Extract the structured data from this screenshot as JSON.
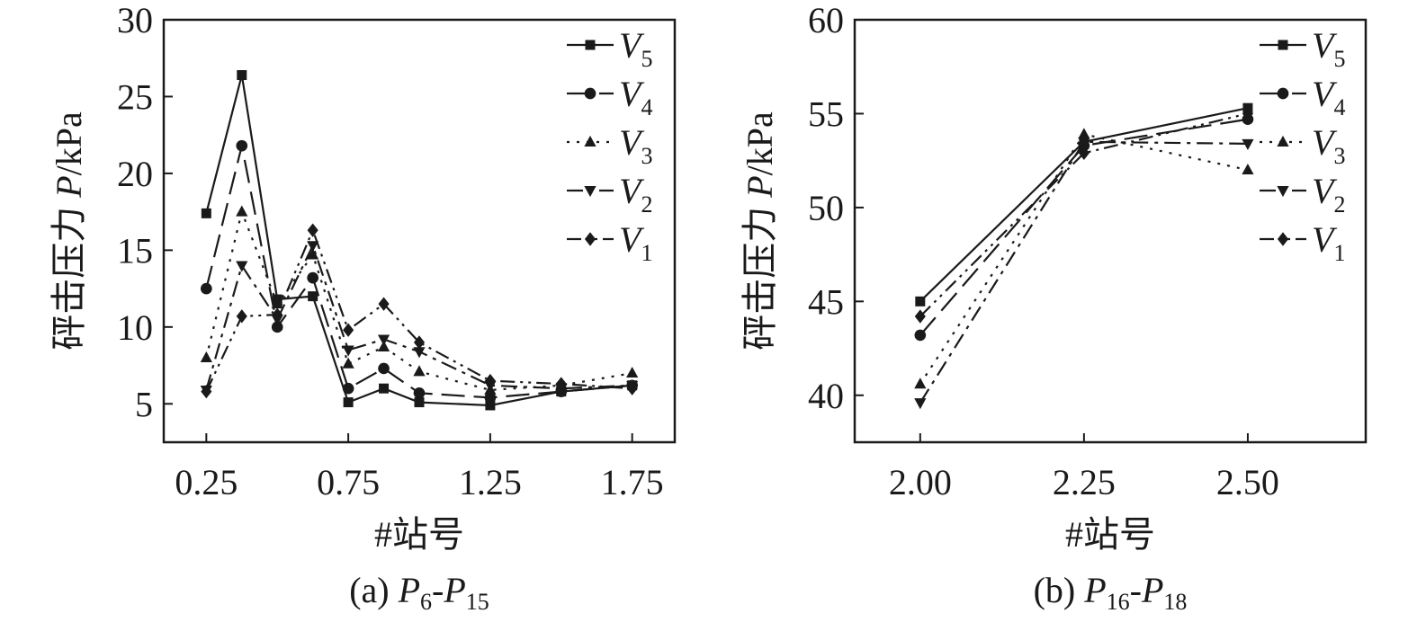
{
  "chart_data": [
    {
      "type": "line",
      "x": [
        0.25,
        0.375,
        0.5,
        0.625,
        0.75,
        0.875,
        1.0,
        1.25,
        1.5,
        1.75
      ],
      "x_ticks": [
        "0.25",
        "0.75",
        "1.25",
        "1.75"
      ],
      "x_tick_values": [
        0.25,
        0.75,
        1.25,
        1.75
      ],
      "xlim": [
        0.1,
        1.9
      ],
      "y_ticks": [
        "5",
        "10",
        "15",
        "20",
        "25",
        "30"
      ],
      "y_tick_values": [
        5,
        10,
        15,
        20,
        25,
        30
      ],
      "ylim": [
        2.5,
        30
      ],
      "xlabel": "#站号",
      "ylabel_prefix": "砰击压力 ",
      "ylabel_var": "P",
      "ylabel_unit": "/kPa",
      "caption_prefix": "(a) ",
      "caption_a": "P",
      "caption_a_sub": "6",
      "caption_sep": "-",
      "caption_b": "P",
      "caption_b_sub": "15",
      "legend_position": "top-right",
      "series": [
        {
          "name": "V",
          "sub": "5",
          "marker": "square",
          "dash": "solid",
          "values": [
            17.4,
            26.4,
            11.8,
            12.0,
            5.1,
            6.0,
            5.1,
            4.9,
            5.8,
            6.2
          ]
        },
        {
          "name": "V",
          "sub": "4",
          "marker": "circle",
          "dash": "longdash",
          "values": [
            12.5,
            21.8,
            10.0,
            13.2,
            6.0,
            7.3,
            5.7,
            5.4,
            5.8,
            6.2
          ]
        },
        {
          "name": "V",
          "sub": "3",
          "marker": "triangle-up",
          "dash": "dotted",
          "values": [
            8.0,
            17.5,
            11.5,
            14.7,
            7.6,
            8.7,
            7.1,
            5.9,
            6.2,
            7.0
          ]
        },
        {
          "name": "V",
          "sub": "2",
          "marker": "triangle-down",
          "dash": "dashdot",
          "values": [
            5.9,
            14.0,
            10.5,
            15.3,
            8.5,
            9.2,
            8.4,
            6.2,
            6.0,
            6.2
          ]
        },
        {
          "name": "V",
          "sub": "1",
          "marker": "diamond",
          "dash": "dashdotdot",
          "values": [
            5.8,
            10.7,
            10.8,
            16.3,
            9.8,
            11.5,
            9.0,
            6.5,
            6.3,
            6.0
          ]
        }
      ]
    },
    {
      "type": "line",
      "x": [
        2.0,
        2.25,
        2.5
      ],
      "x_ticks": [
        "2.00",
        "2.25",
        "2.50"
      ],
      "x_tick_values": [
        2.0,
        2.25,
        2.5
      ],
      "xlim": [
        1.9,
        2.68
      ],
      "y_ticks": [
        "40",
        "45",
        "50",
        "55",
        "60"
      ],
      "y_tick_values": [
        40,
        45,
        50,
        55,
        60
      ],
      "ylim": [
        37.5,
        60
      ],
      "xlabel": "#站号",
      "ylabel_prefix": "砰击压力 ",
      "ylabel_var": "P",
      "ylabel_unit": "/kPa",
      "caption_prefix": "(b) ",
      "caption_a": "P",
      "caption_a_sub": "16",
      "caption_sep": "-",
      "caption_b": "P",
      "caption_b_sub": "18",
      "legend_position": "top-right",
      "series": [
        {
          "name": "V",
          "sub": "5",
          "marker": "square",
          "dash": "solid",
          "values": [
            45.0,
            53.5,
            55.3
          ]
        },
        {
          "name": "V",
          "sub": "4",
          "marker": "circle",
          "dash": "longdash",
          "values": [
            43.2,
            53.3,
            54.7
          ]
        },
        {
          "name": "V",
          "sub": "3",
          "marker": "triangle-up",
          "dash": "dotted",
          "values": [
            40.6,
            53.9,
            52.0
          ]
        },
        {
          "name": "V",
          "sub": "2",
          "marker": "triangle-down",
          "dash": "dashdot",
          "values": [
            39.6,
            53.5,
            53.4
          ]
        },
        {
          "name": "V",
          "sub": "1",
          "marker": "diamond",
          "dash": "dashdotdot",
          "values": [
            44.2,
            52.9,
            55.0
          ]
        }
      ]
    }
  ]
}
